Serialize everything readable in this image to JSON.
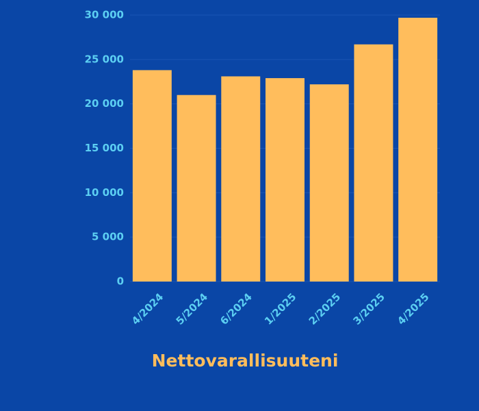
{
  "chart_data": {
    "type": "bar",
    "title": "Nettovarallisuuteni",
    "categories": [
      "4/2024",
      "5/2024",
      "6/2024",
      "1/2025",
      "2/2025",
      "3/2025",
      "4/2025"
    ],
    "values": [
      23800,
      21000,
      23100,
      22900,
      22200,
      26700,
      29700
    ],
    "color": "#ffbd5c",
    "ylim": [
      0,
      30000
    ],
    "yticks": [
      0,
      {
        "value": 5000,
        "label": "5 000"
      },
      {
        "value": 10000,
        "label": "10 000"
      },
      {
        "value": 15000,
        "label": "15 000"
      },
      {
        "value": 20000,
        "label": "20 000"
      },
      {
        "value": 25000,
        "label": "25 000"
      },
      {
        "value": 30000,
        "label": "30 000"
      }
    ],
    "grid": true
  }
}
